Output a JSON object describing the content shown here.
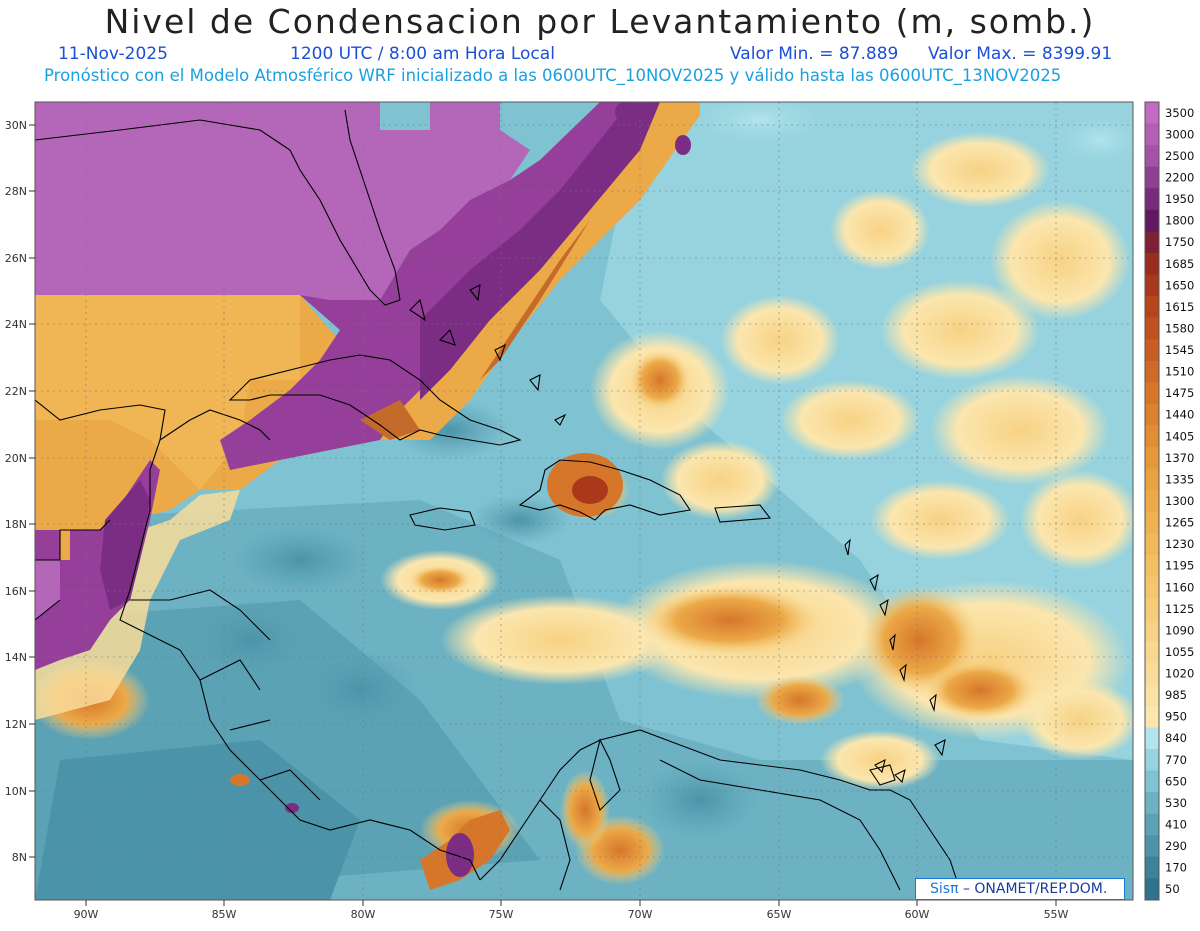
{
  "header": {
    "title": "Nivel de Condensacion por Levantamiento (m, somb.)",
    "date": "11-Nov-2025",
    "time": "1200 UTC / 8:00 am Hora Local",
    "min": "Valor Min. = 87.889",
    "max": "Valor Max. = 8399.91",
    "subtitle": "Pronóstico con el Modelo Atmosférico WRF inicializado a las 0600UTC_10NOV2025 y válido hasta las  0600UTC_13NOV2025"
  },
  "axes": {
    "lat_labels": [
      "30N",
      "28N",
      "26N",
      "24N",
      "22N",
      "20N",
      "18N",
      "16N",
      "14N",
      "12N",
      "10N",
      "8N"
    ],
    "lon_labels": [
      "90W",
      "85W",
      "80W",
      "75W",
      "70W",
      "65W",
      "60W",
      "55W"
    ]
  },
  "colorbar": {
    "labels": [
      "3500",
      "3000",
      "2500",
      "2200",
      "1950",
      "1800",
      "1750",
      "1685",
      "1650",
      "1615",
      "1580",
      "1545",
      "1510",
      "1475",
      "1440",
      "1405",
      "1370",
      "1335",
      "1300",
      "1265",
      "1230",
      "1195",
      "1160",
      "1125",
      "1090",
      "1055",
      "1020",
      "985",
      "950",
      "840",
      "770",
      "650",
      "530",
      "410",
      "290",
      "170",
      "50"
    ],
    "colors": [
      "#c46ac2",
      "#b45fb4",
      "#a352a6",
      "#8e3f92",
      "#772c7a",
      "#611962",
      "#7d1f35",
      "#962d1e",
      "#a9391a",
      "#b5461b",
      "#bf521e",
      "#c75d22",
      "#cf6a27",
      "#d6762b",
      "#dc822f",
      "#e08d33",
      "#e49838",
      "#e8a33f",
      "#eca947",
      "#efb14f",
      "#f1b859",
      "#f3bf63",
      "#f5c66e",
      "#f6cc79",
      "#f7d284",
      "#f8d78f",
      "#f9dc9a",
      "#faE1a4",
      "#fbe6ae",
      "#b3e4ec",
      "#96d3df",
      "#7fc2d1",
      "#6cb2c3",
      "#5ba2b5",
      "#4b93a8",
      "#3c839a",
      "#2e738c"
    ]
  },
  "credit": {
    "logo": "Sisπ",
    "text": "– ONAMET/REP.DOM."
  }
}
